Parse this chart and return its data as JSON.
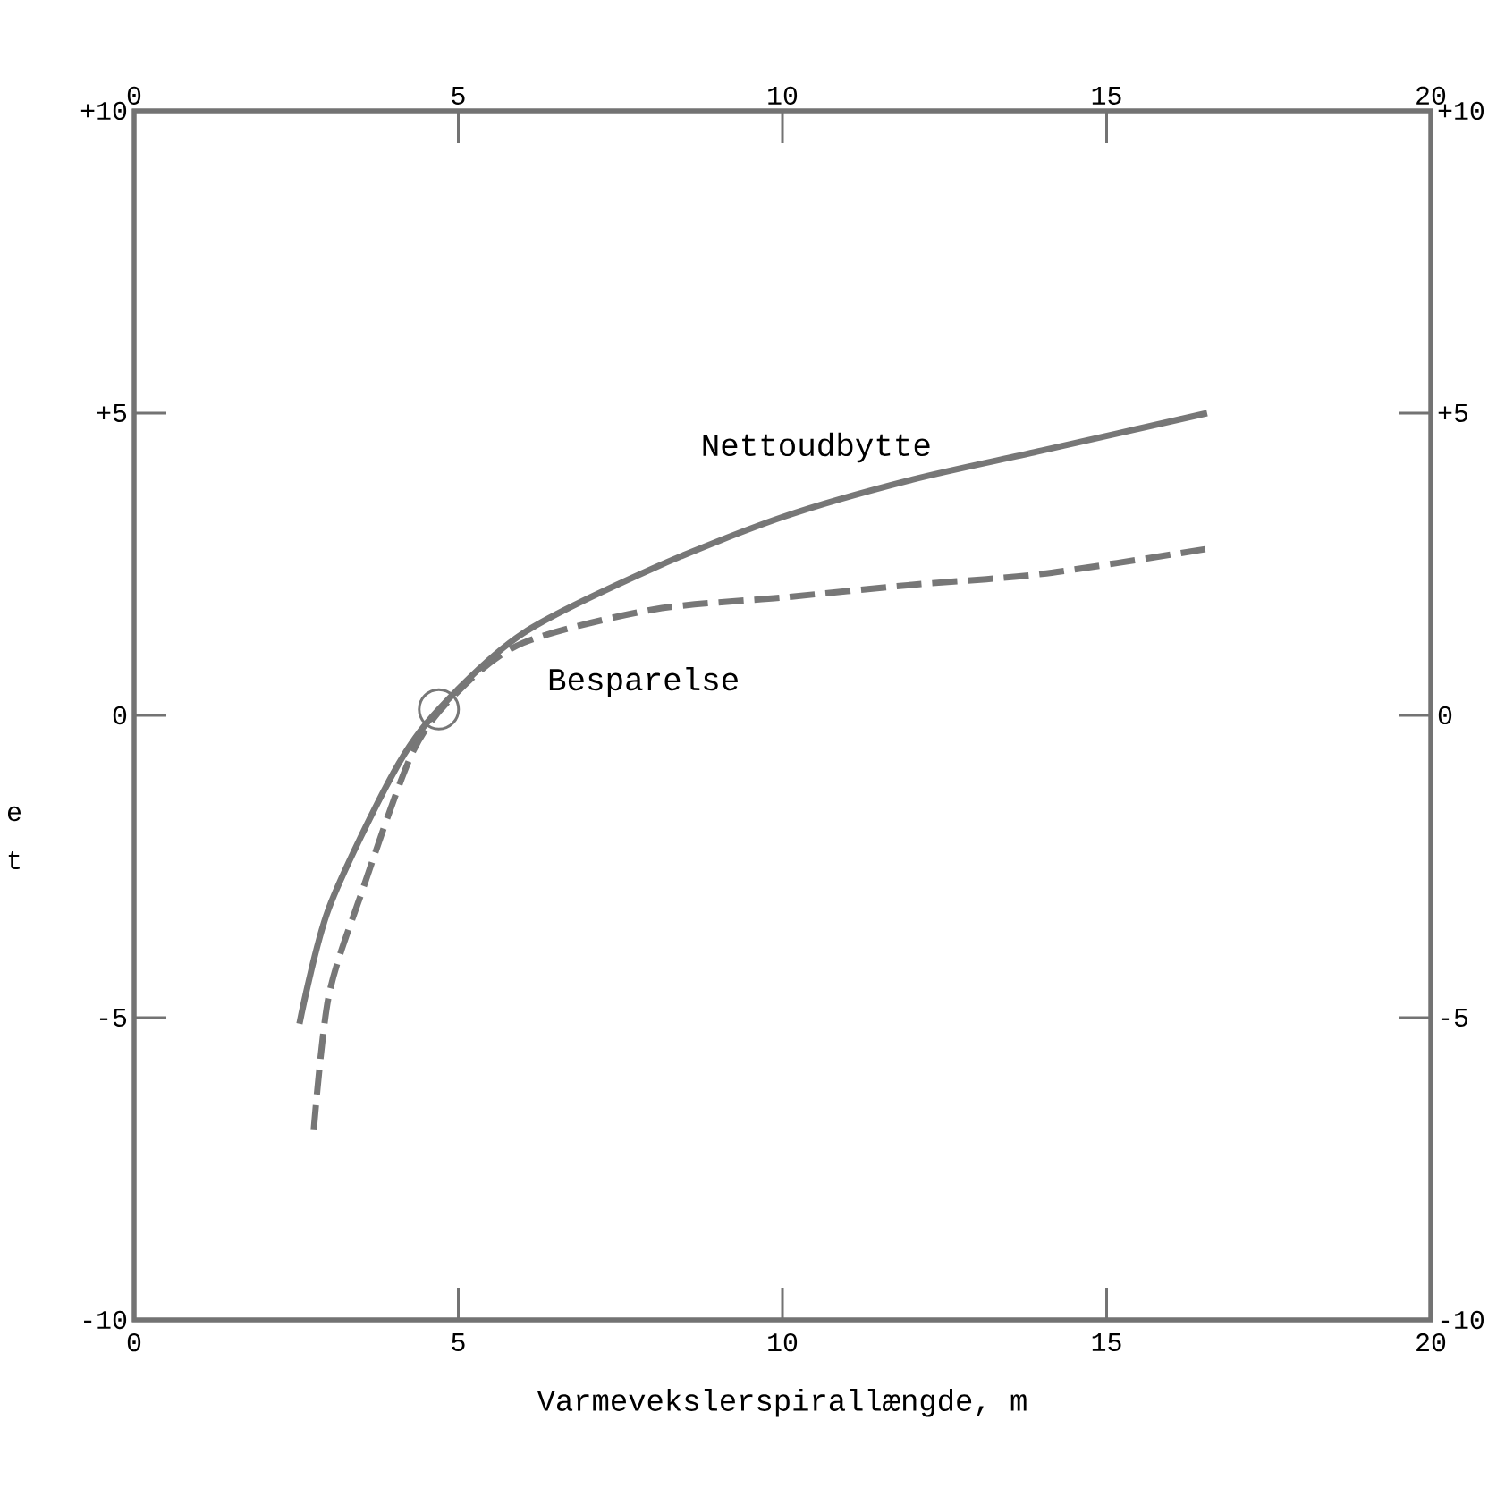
{
  "chart_data": {
    "type": "line",
    "xlabel": "Varmevekslerspirallængde, m",
    "xlim": [
      0,
      20
    ],
    "xticks": [
      0,
      5,
      10,
      15,
      20
    ],
    "x2lim": [
      0,
      20
    ],
    "x2ticks": [
      0,
      5,
      10,
      15,
      20
    ],
    "ylim": [
      -10,
      10
    ],
    "yticks": [
      {
        "value": -10,
        "label": "-10"
      },
      {
        "value": -5,
        "label": "-5"
      },
      0,
      {
        "value": 5,
        "label": "+5"
      },
      {
        "value": 10,
        "label": "+10"
      }
    ],
    "y2lim": [
      -10,
      10
    ],
    "y2ticks": [
      {
        "value": -10,
        "label": "-10"
      },
      {
        "value": -5,
        "label": "-5"
      },
      0,
      {
        "value": 5,
        "label": "+5"
      },
      {
        "value": 10,
        "label": "+10"
      }
    ],
    "series": [
      {
        "name": "Nettoudbytte",
        "color": "#777777",
        "line_style": "solid",
        "x": [
          2.55,
          3,
          4,
          4.7,
          6,
          8,
          10,
          12,
          14,
          16.55
        ],
        "values": [
          -5.1,
          -3.2,
          -0.95,
          0.1,
          1.36,
          2.43,
          3.28,
          3.9,
          4.38,
          5.0
        ]
      },
      {
        "name": "Besparelse",
        "color": "#777777",
        "line_style": "dashed",
        "x": [
          2.77,
          3,
          3.5,
          4.3,
          5,
          6,
          8,
          10,
          12,
          14,
          16.52
        ],
        "values": [
          -6.86,
          -4.65,
          -2.96,
          -0.6,
          0.4,
          1.2,
          1.75,
          1.95,
          2.16,
          2.34,
          2.75
        ]
      },
      {
        "type": "scatter",
        "marker": "circle",
        "color": "#777777",
        "x": [
          4.7
        ],
        "values": [
          0.1
        ]
      }
    ],
    "annotations": [
      "e",
      "t"
    ]
  }
}
